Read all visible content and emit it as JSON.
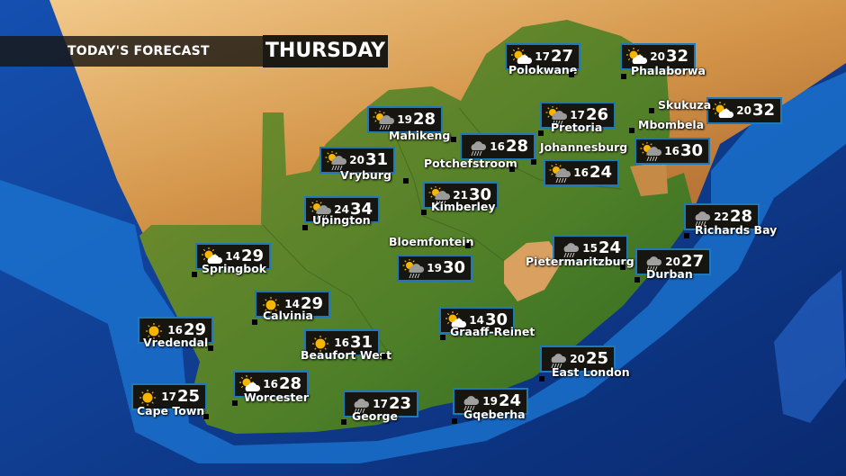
{
  "header": {
    "title": "TODAY'S FORECAST",
    "day": "THURSDAY"
  },
  "colors": {
    "ocean": "#0b2f7a",
    "coast": "#1a73d0",
    "land": "#5e8a2a",
    "desert": "#c98a3a",
    "box_border": "#1f78b8",
    "box_bg": "#17150f"
  },
  "cities": [
    {
      "name": "Polokwane",
      "min": "17",
      "max": "27",
      "icon": "sun-cloud"
    },
    {
      "name": "Phalaborwa",
      "min": "20",
      "max": "32",
      "icon": "sun-cloud"
    },
    {
      "name": "Skukuza",
      "min": "20",
      "max": "32",
      "icon": "sun-cloud"
    },
    {
      "name": "Pretoria",
      "min": "17",
      "max": "26",
      "icon": "sun-cloud-rain"
    },
    {
      "name": "Mbombela",
      "min": "16",
      "max": "30",
      "icon": "sun-cloud-rain"
    },
    {
      "name": "Mahikeng",
      "min": "19",
      "max": "28",
      "icon": "sun-cloud-rain"
    },
    {
      "name": "Potchefstroom",
      "min": "16",
      "max": "28",
      "icon": "rain"
    },
    {
      "name": "Johannesburg",
      "min": "16",
      "max": "24",
      "icon": "sun-cloud-rain"
    },
    {
      "name": "Vryburg",
      "min": "20",
      "max": "31",
      "icon": "sun-cloud-rain"
    },
    {
      "name": "Kimberley",
      "min": "21",
      "max": "30",
      "icon": "sun-cloud-rain"
    },
    {
      "name": "Upington",
      "min": "24",
      "max": "34",
      "icon": "sun-cloud-rain"
    },
    {
      "name": "Bloemfontein",
      "min": "19",
      "max": "30",
      "icon": "sun-cloud-rain"
    },
    {
      "name": "Pietermaritzburg",
      "min": "15",
      "max": "24",
      "icon": "rain"
    },
    {
      "name": "Richards Bay",
      "min": "22",
      "max": "28",
      "icon": "rain"
    },
    {
      "name": "Durban",
      "min": "20",
      "max": "27",
      "icon": "rain"
    },
    {
      "name": "Springbok",
      "min": "14",
      "max": "29",
      "icon": "sun-cloud"
    },
    {
      "name": "Calvinia",
      "min": "14",
      "max": "29",
      "icon": "sun"
    },
    {
      "name": "Vredendal",
      "min": "16",
      "max": "29",
      "icon": "sun"
    },
    {
      "name": "Graaff-Reinet",
      "min": "14",
      "max": "30",
      "icon": "sun-cloud"
    },
    {
      "name": "Beaufort West",
      "min": "16",
      "max": "31",
      "icon": "sun"
    },
    {
      "name": "East London",
      "min": "20",
      "max": "25",
      "icon": "rain"
    },
    {
      "name": "Cape Town",
      "min": "17",
      "max": "25",
      "icon": "sun"
    },
    {
      "name": "Worcester",
      "min": "16",
      "max": "28",
      "icon": "sun-cloud"
    },
    {
      "name": "George",
      "min": "17",
      "max": "23",
      "icon": "rain"
    },
    {
      "name": "Gqeberha",
      "min": "19",
      "max": "24",
      "icon": "rain"
    }
  ]
}
